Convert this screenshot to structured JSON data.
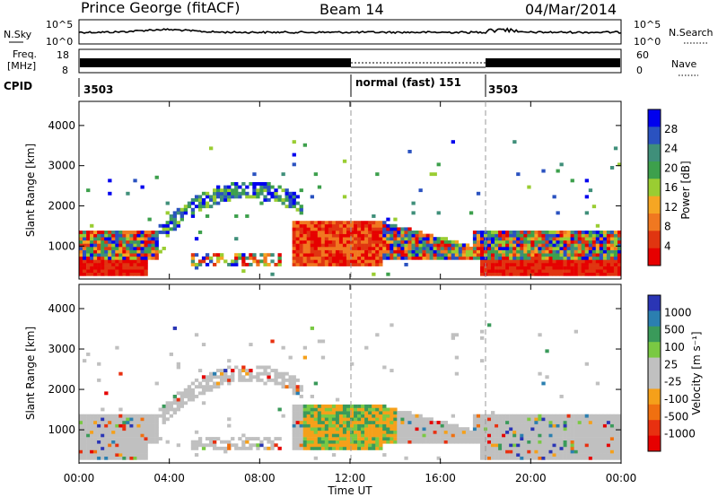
{
  "header": {
    "station": "Prince George (fitACF)",
    "beam": "Beam 14",
    "date": "04/Mar/2014"
  },
  "sky_panel": {
    "left_label": "N.Sky",
    "right_label": "N.Search",
    "tick_top": "10^5",
    "tick_bottom": "10^0",
    "tick_top_right": "10^5",
    "tick_bottom_right": "10^0"
  },
  "freq_panel": {
    "left_label_1": "Freq.",
    "left_label_2": "[MHz]",
    "left_tick_top": "18",
    "left_tick_bottom": "8",
    "right_label": "Nave",
    "right_tick_top": "60",
    "right_tick_bottom": "0"
  },
  "cpid_row": {
    "label": "CPID",
    "entries": [
      {
        "text": "3503",
        "start_hour": 0
      },
      {
        "text": "normal (fast)  151",
        "start_hour": 12
      },
      {
        "text": "3503",
        "start_hour": 18
      }
    ]
  },
  "chart_data": [
    {
      "type": "heatmap",
      "name": "power",
      "ylabel": "Slant Range [km]",
      "ylim": [
        180,
        4600
      ],
      "yticks": [
        "1000",
        "2000",
        "3000",
        "4000"
      ],
      "xlim_hours": [
        0,
        24
      ],
      "colorbar_label": "Power [dB]",
      "colorbar_ticks": [
        "4",
        "8",
        "12",
        "16",
        "20",
        "24",
        "28"
      ],
      "colorbar_colors": [
        "#0000ee",
        "#2a52c0",
        "#3f8f7a",
        "#3da04c",
        "#9acd32",
        "#f5a623",
        "#f07820",
        "#e03510",
        "#e60000"
      ]
    },
    {
      "type": "heatmap",
      "name": "velocity",
      "ylabel": "Slant Range [km]",
      "ylim": [
        180,
        4600
      ],
      "yticks": [
        "1000",
        "2000",
        "3000",
        "4000"
      ],
      "xlim_hours": [
        0,
        24
      ],
      "colorbar_label": "Velocity [m s⁻¹]",
      "colorbar_ticks": [
        "1000",
        "500",
        "100",
        "25",
        "-25",
        "-100",
        "-500",
        "-1000"
      ],
      "colorbar_colors": [
        "#2a35b5",
        "#2b7fb0",
        "#3a9a5a",
        "#7ac943",
        "#c0c0c0",
        "#c0c0c0",
        "#f5a01a",
        "#f07010",
        "#e83010",
        "#e60000"
      ]
    }
  ],
  "x_axis": {
    "ticks": [
      "00:00",
      "04:00",
      "08:00",
      "12:00",
      "16:00",
      "20:00",
      "00:00"
    ],
    "label": "Time UT"
  }
}
